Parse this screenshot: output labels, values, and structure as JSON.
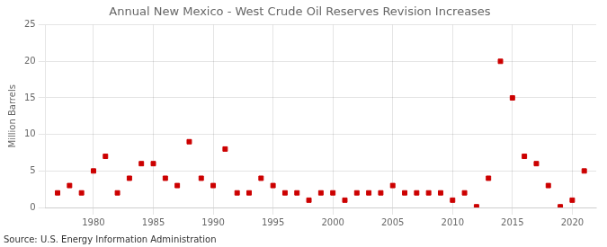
{
  "chart_data": {
    "type": "scatter",
    "title": "Annual New Mexico - West Crude Oil Reserves Revision Increases",
    "ylabel": "Million Barrels",
    "source": "Source: U.S. Energy Information Administration",
    "x": [
      1977,
      1978,
      1979,
      1980,
      1981,
      1982,
      1983,
      1984,
      1985,
      1986,
      1987,
      1988,
      1989,
      1990,
      1991,
      1992,
      1993,
      1994,
      1995,
      1996,
      1997,
      1998,
      1999,
      2000,
      2001,
      2002,
      2003,
      2004,
      2005,
      2006,
      2007,
      2008,
      2009,
      2010,
      2011,
      2012,
      2013,
      2014,
      2015,
      2016,
      2017,
      2018,
      2019,
      2020,
      2021
    ],
    "values": [
      2.0,
      3.0,
      2.0,
      5.0,
      7.0,
      2.0,
      4.0,
      6.0,
      6.0,
      4.0,
      3.0,
      9.0,
      4.0,
      3.0,
      8.0,
      2.0,
      2.0,
      4.0,
      3.0,
      2.0,
      2.0,
      1.0,
      2.0,
      2.0,
      1.0,
      2.0,
      2.0,
      2.0,
      3.0,
      2.0,
      2.0,
      2.0,
      2.0,
      1.0,
      2.0,
      0.1,
      4.0,
      20.0,
      15.0,
      7.0,
      6.0,
      3.0,
      0.1,
      1.0,
      5.0
    ],
    "color": "#cc0000",
    "marker": "square",
    "xlim": [
      1976,
      2022
    ],
    "ylim": [
      0,
      25
    ],
    "xticks": [
      1980,
      1985,
      1990,
      1995,
      2000,
      2005,
      2010,
      2015,
      2020
    ],
    "yticks": [
      0,
      5,
      10,
      15,
      20,
      25
    ],
    "grid": true
  }
}
